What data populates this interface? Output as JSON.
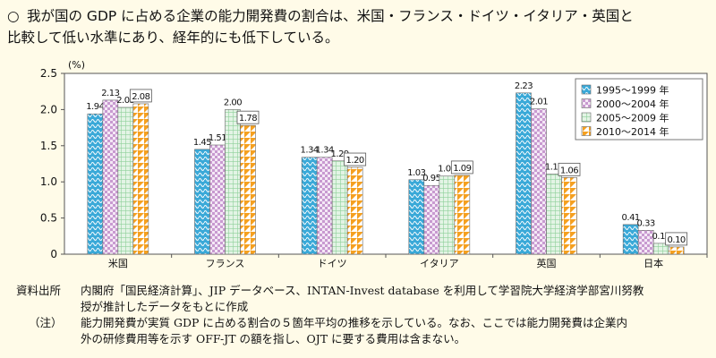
{
  "heading": {
    "marker": "○",
    "line1": "我が国の GDP に占める企業の能力開発費の割合は、米国・フランス・ドイツ・イタリア・英国と",
    "line2": "比較して低い水準にあり、経年的にも低下している。"
  },
  "chart_data": {
    "type": "bar",
    "ylabel": "(%)",
    "ylim": [
      0,
      2.5
    ],
    "yticks": [
      "0",
      "0.5",
      "1.0",
      "1.5",
      "2.0",
      "2.5"
    ],
    "categories": [
      "米国",
      "フランス",
      "ドイツ",
      "イタリア",
      "英国",
      "日本"
    ],
    "series": [
      {
        "name": "1995～1999 年",
        "values": [
          1.94,
          1.45,
          1.34,
          1.03,
          2.23,
          0.41
        ],
        "labels": [
          "1.94",
          "1.45",
          "1.34",
          "1.03",
          "2.23",
          "0.41"
        ],
        "color": "#3aa9d8",
        "pattern": "wave"
      },
      {
        "name": "2000～2004 年",
        "values": [
          2.13,
          1.51,
          1.34,
          0.95,
          2.01,
          0.33
        ],
        "labels": [
          "2.13",
          "1.51",
          "1.34",
          "0.95",
          "2.01",
          "0.33"
        ],
        "color": "#c89ad0",
        "pattern": "check"
      },
      {
        "name": "2005～2009 年",
        "values": [
          2.03,
          2.0,
          1.29,
          1.08,
          1.11,
          0.15
        ],
        "labels": [
          "2.03",
          "2.00",
          "1.29",
          "1.08",
          "1.11",
          "0.15"
        ],
        "color": "#8fd09a",
        "pattern": "grid"
      },
      {
        "name": "2010～2014 年",
        "values": [
          2.08,
          1.78,
          1.2,
          1.09,
          1.06,
          0.1
        ],
        "labels": [
          "2.08",
          "1.78",
          "1.20",
          "1.09",
          "1.06",
          "0.10"
        ],
        "color": "#f5a020",
        "pattern": "triangle"
      }
    ],
    "legend": "top-right",
    "grid": false
  },
  "notes": [
    {
      "label": "資料出所",
      "text": "内閣府「国民経済計算」、JIP データベース、INTAN-Invest database を利用して学習院大学経済学部宮川努教",
      "text2": "授が推計したデータをもとに作成"
    },
    {
      "label": "（注）",
      "text": "能力開発費が実質 GDP に占める割合の５箇年平均の推移を示している。なお、ここでは能力開発費は企業内",
      "text2": "外の研修費用等を示す OFF-JT の額を指し、OJT に要する費用は含まない。"
    }
  ]
}
